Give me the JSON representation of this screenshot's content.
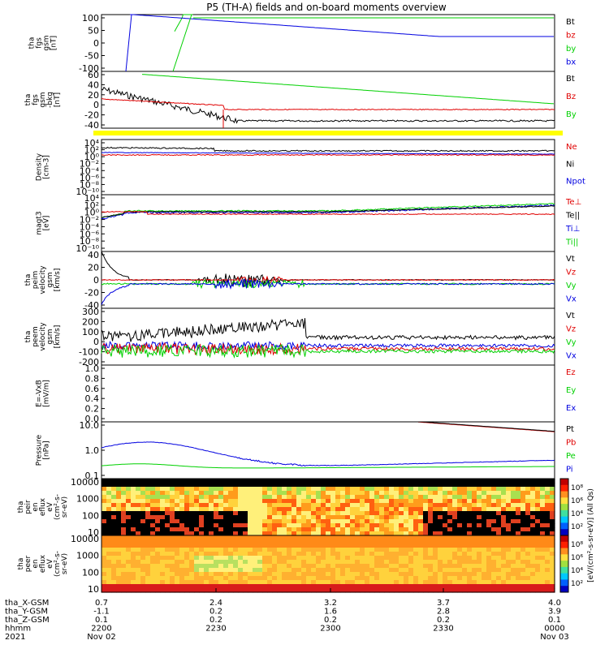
{
  "title": "P5 (TH-A) fields and on-board moments overview",
  "colors": {
    "black": "#000000",
    "red": "#e00000",
    "green": "#00d000",
    "blue": "#0000e0",
    "yellow": "#ffff00"
  },
  "chart_data": [
    {
      "type": "line",
      "ylabel": [
        "tha",
        "fgs",
        "gsm",
        "[nT]"
      ],
      "yticks": [
        "100",
        "50",
        "0",
        "-50",
        "-100"
      ],
      "ylim": [
        -100,
        100
      ],
      "legend": [
        {
          "name": "Bt",
          "color": "black"
        },
        {
          "name": "bz",
          "color": "red"
        },
        {
          "name": "by",
          "color": "green"
        },
        {
          "name": "bx",
          "color": "blue"
        }
      ]
    },
    {
      "type": "line",
      "ylabel": [
        "tha",
        "fgs",
        "gsm",
        "-bkg",
        "[nT]"
      ],
      "yticks": [
        "60",
        "40",
        "20",
        "0",
        "-20",
        "-40"
      ],
      "ylim": [
        -50,
        60
      ],
      "legend": [
        {
          "name": "Bt",
          "color": "black"
        },
        {
          "name": "Bz",
          "color": "red"
        },
        {
          "name": "By",
          "color": "green"
        }
      ]
    },
    {
      "type": "bar",
      "ylabel": [],
      "yticks": [],
      "legend": []
    },
    {
      "type": "line",
      "ylabel": [
        "Density",
        "[cm-3]"
      ],
      "yticks": [
        "10⁴",
        "10²",
        "10⁰",
        "10⁻²",
        "10⁻⁴",
        "10⁻⁶",
        "10⁻⁸",
        "10⁻¹⁰"
      ],
      "log": true,
      "legend": [
        {
          "name": "Ne",
          "color": "red"
        },
        {
          "name": "Ni",
          "color": "black"
        },
        {
          "name": "Npot",
          "color": "blue"
        }
      ]
    },
    {
      "type": "line",
      "ylabel": [
        "magt3",
        "[eV]"
      ],
      "yticks": [
        "10⁴",
        "10²",
        "10⁰",
        "10⁻²",
        "10⁻⁴",
        "10⁻⁶",
        "10⁻⁸",
        "10⁻¹⁰"
      ],
      "log": true,
      "legend": [
        {
          "name": "Te⊥",
          "color": "red"
        },
        {
          "name": "Te||",
          "color": "black"
        },
        {
          "name": "Ti⊥",
          "color": "blue"
        },
        {
          "name": "Ti||",
          "color": "green"
        }
      ]
    },
    {
      "type": "line",
      "ylabel": [
        "tha",
        "peim",
        "velocity",
        "gsm",
        "[km/s]"
      ],
      "yticks": [
        "40",
        "20",
        "0",
        "-20",
        "-40"
      ],
      "ylim": [
        -45,
        45
      ],
      "legend": [
        {
          "name": "Vt",
          "color": "black"
        },
        {
          "name": "Vz",
          "color": "red"
        },
        {
          "name": "Vy",
          "color": "green"
        },
        {
          "name": "Vx",
          "color": "blue"
        }
      ]
    },
    {
      "type": "line",
      "ylabel": [
        "tha",
        "peem",
        "velocity",
        "gsm",
        "[km/s]"
      ],
      "yticks": [
        "300",
        "200",
        "100",
        "0",
        "-100",
        "-200"
      ],
      "ylim": [
        -220,
        310
      ],
      "legend": [
        {
          "name": "Vt",
          "color": "black"
        },
        {
          "name": "Vz",
          "color": "red"
        },
        {
          "name": "Vy",
          "color": "green"
        },
        {
          "name": "Vx",
          "color": "blue"
        }
      ]
    },
    {
      "type": "line",
      "ylabel": [
        "E=-VxB",
        "[mV/m]"
      ],
      "yticks": [
        "1.0",
        "0.8",
        "0.6",
        "0.4",
        "0.2",
        "0.0"
      ],
      "ylim": [
        0,
        1
      ],
      "legend": [
        {
          "name": "Ez",
          "color": "red"
        },
        {
          "name": "Ey",
          "color": "green"
        },
        {
          "name": "Ex",
          "color": "blue"
        }
      ]
    },
    {
      "type": "line",
      "ylabel": [
        "Pressure",
        "[nPa]"
      ],
      "yticks": [
        "10.0",
        "1.0",
        "0.1"
      ],
      "log": true,
      "legend": [
        {
          "name": "Pt",
          "color": "black"
        },
        {
          "name": "Pb",
          "color": "red"
        },
        {
          "name": "Pe",
          "color": "green"
        },
        {
          "name": "Pi",
          "color": "blue"
        }
      ]
    },
    {
      "type": "heatmap",
      "ylabel": [
        "tha",
        "peir",
        "en",
        "eflux",
        "eV",
        "(cm²-s-",
        "sr-eV)"
      ],
      "yticks": [
        "10000",
        "1000",
        "100",
        "10"
      ],
      "log": true,
      "legend": []
    },
    {
      "type": "heatmap",
      "ylabel": [
        "tha",
        "peer",
        "en",
        "eflux",
        "eV",
        "(cm²-s-",
        "sr-eV)"
      ],
      "yticks": [
        "10000",
        "1000",
        "100",
        "10"
      ],
      "log": true,
      "legend": []
    }
  ],
  "colorbar": {
    "ticks": [
      "10⁸",
      "10⁶",
      "10⁴",
      "10²"
    ],
    "label": "[eV/(cm²-s-sr-eV)] (All Qs)"
  },
  "xaxis": {
    "rows": [
      {
        "label": "tha_X-GSM",
        "values": [
          "0.7",
          "2.4",
          "3.2",
          "3.7",
          "4.0"
        ]
      },
      {
        "label": "tha_Y-GSM",
        "values": [
          "-1.1",
          "0.2",
          "1.6",
          "2.8",
          "3.9"
        ]
      },
      {
        "label": "tha_Z-GSM",
        "values": [
          "0.1",
          "0.2",
          "0.2",
          "0.2",
          "0.1"
        ]
      },
      {
        "label": "hhmm",
        "values": [
          "2200",
          "2230",
          "2300",
          "2330",
          "0000"
        ]
      },
      {
        "label": "2021",
        "values": [
          "Nov 02",
          "",
          "",
          "",
          "Nov 03"
        ]
      }
    ]
  }
}
